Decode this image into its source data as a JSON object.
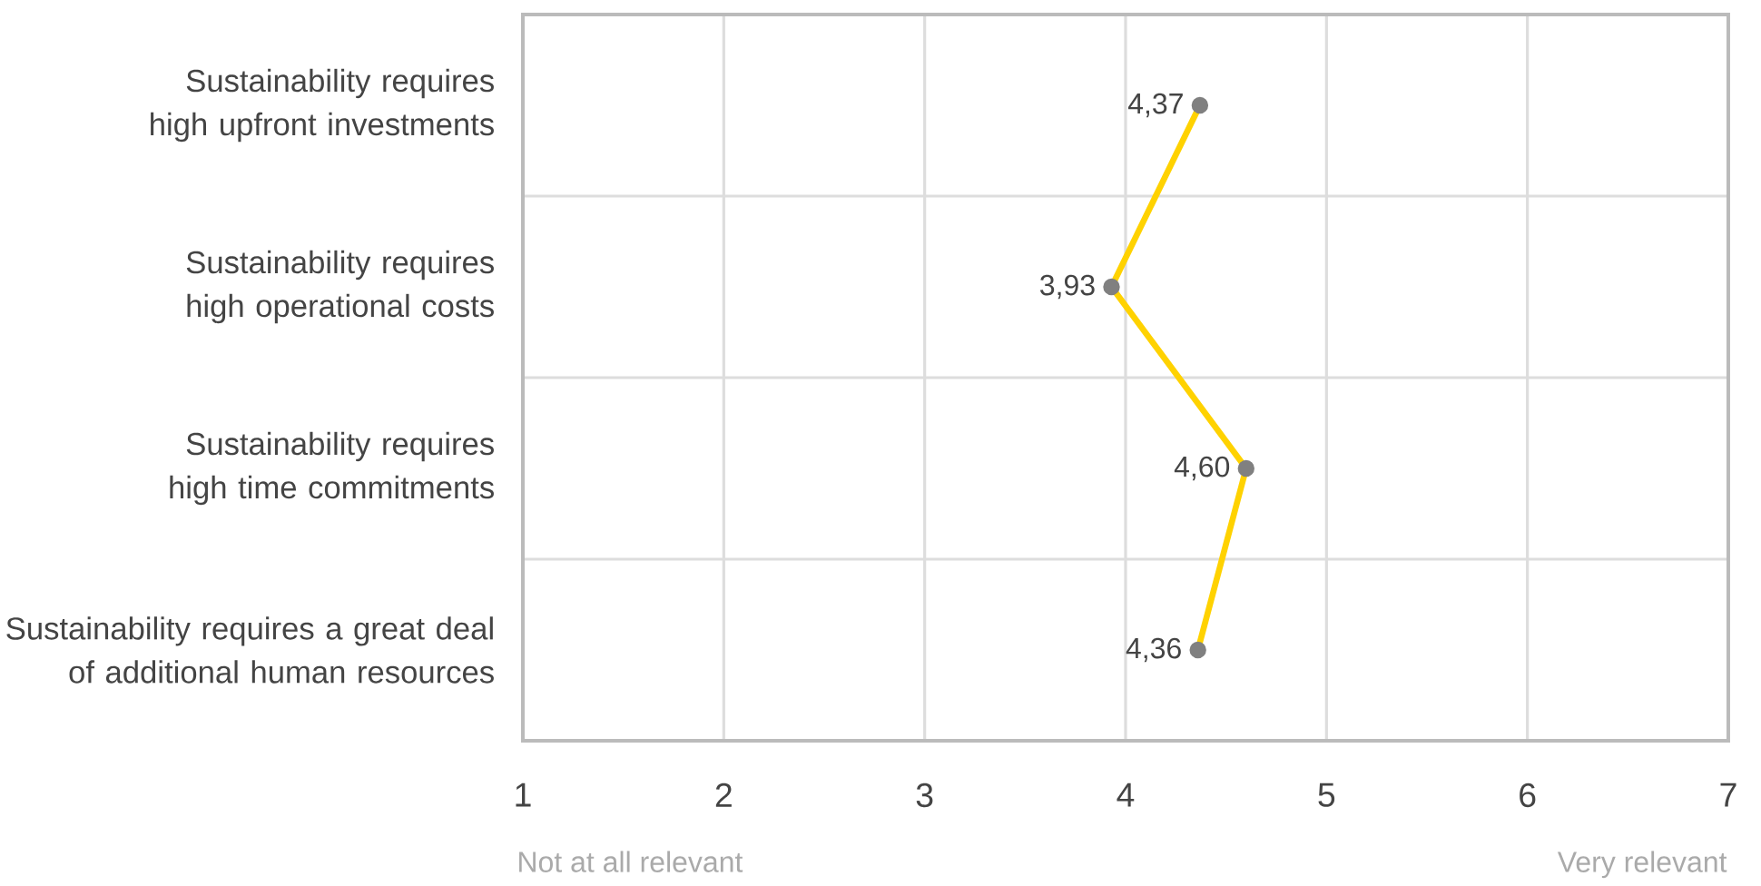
{
  "chart_data": {
    "type": "line",
    "orientation": "horizontal",
    "categories": [
      "Sustainability requires high upfront investments",
      "Sustainability requires high operational costs",
      "Sustainability requires high time commitments",
      "Sustainability requires a great deal of additional human resources"
    ],
    "series": [
      {
        "color": "#ffd200",
        "values": [
          4.37,
          3.93,
          4.6,
          4.36
        ],
        "value_labels": [
          "4,37",
          "3,93",
          "4,60",
          "4,36"
        ]
      }
    ],
    "xlim": [
      1,
      7
    ],
    "xticks": [
      1,
      2,
      3,
      4,
      5,
      6,
      7
    ],
    "grid": true,
    "marker": "circle",
    "line_style": "solid",
    "annotations": [
      "Not at all relevant",
      "Very relevant"
    ]
  }
}
